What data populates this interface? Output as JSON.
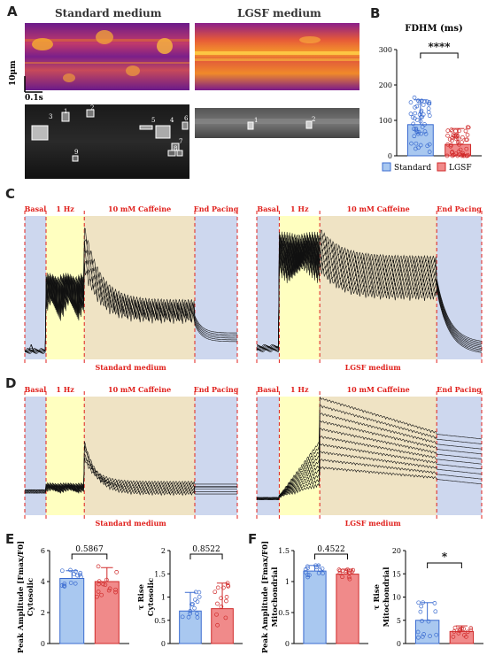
{
  "panels": {
    "A": {
      "label": "A",
      "col_left": "Standard medium",
      "col_right": "LGSF medium",
      "scale_y": "10μm",
      "scale_x": "0.1s",
      "roi_left": [
        "1",
        "2",
        "3",
        "4",
        "5",
        "6",
        "7",
        "8",
        "9"
      ],
      "roi_right": [
        "1",
        "2"
      ]
    },
    "B": {
      "label": "B"
    },
    "C": {
      "label": "C",
      "phases": [
        "Basal",
        "1 Hz",
        "10 mM Caffeine",
        "End Pacing"
      ],
      "caption_left": "Standard medium",
      "caption_right": "LGSF medium",
      "left_annotation": "A"
    },
    "D": {
      "label": "D",
      "phases": [
        "Basal",
        "1 Hz",
        "10 mM Caffeine",
        "End Pacing"
      ],
      "caption_left": "Standard medium",
      "caption_right": "LGSF medium"
    },
    "E": {
      "label": "E"
    },
    "F": {
      "label": "F"
    }
  },
  "colors": {
    "standard_fill": "#a9c8f0",
    "standard_edge": "#3a6bd0",
    "lgsf_fill": "#f08a8a",
    "lgsf_edge": "#d02a2a",
    "basal_bg": "#cdd7ee",
    "pacing_bg": "#ffffc0",
    "caffeine_bg": "#efe3c4",
    "phase_text": "#e0201c"
  },
  "chart_data": [
    {
      "id": "B",
      "type": "bar",
      "title": "FDHM (ms)",
      "categories": [
        "Standard",
        "LGSF"
      ],
      "values": [
        88,
        32
      ],
      "errors": [
        70,
        45
      ],
      "ylim": [
        0,
        300
      ],
      "yticks": [
        0,
        100,
        200,
        300
      ],
      "xlabel": "",
      "ylabel": "",
      "significance": "****",
      "legend": [
        "Standard",
        "LGSF"
      ],
      "legend_position": "bottom"
    },
    {
      "id": "E1",
      "type": "bar",
      "ylabel": "Peak Amplitude [Fmax/F0] Cytosolic",
      "categories": [
        "Standard",
        "LGSF"
      ],
      "values": [
        4.2,
        4.0
      ],
      "errors": [
        0.5,
        0.9
      ],
      "ylim": [
        0,
        6
      ],
      "yticks": [
        0,
        2,
        4,
        6
      ],
      "pvalue": "0.5867"
    },
    {
      "id": "E2",
      "type": "bar",
      "ylabel": "τ Rise Cytosolic",
      "categories": [
        "Standard",
        "LGSF"
      ],
      "values": [
        0.7,
        0.75
      ],
      "errors": [
        0.4,
        0.55
      ],
      "ylim": [
        0,
        2.0
      ],
      "yticks": [
        0.0,
        0.5,
        1.0,
        1.5,
        2.0
      ],
      "pvalue": "0.8522"
    },
    {
      "id": "F1",
      "type": "bar",
      "ylabel": "Peak Amplitude [Fmax/F0] Mitochondrial",
      "categories": [
        "Standard",
        "LGSF"
      ],
      "values": [
        1.17,
        1.12
      ],
      "errors": [
        0.09,
        0.08
      ],
      "ylim": [
        0,
        1.5
      ],
      "yticks": [
        0.0,
        0.5,
        1.0,
        1.5
      ],
      "pvalue": "0.4522"
    },
    {
      "id": "F2",
      "type": "bar",
      "ylabel": "τ Rise Mitochondrial",
      "categories": [
        "Standard",
        "LGSF"
      ],
      "values": [
        5.0,
        2.6
      ],
      "errors": [
        3.8,
        1.2
      ],
      "ylim": [
        0,
        20
      ],
      "yticks": [
        0,
        5,
        10,
        15,
        20
      ],
      "significance": "*"
    }
  ]
}
